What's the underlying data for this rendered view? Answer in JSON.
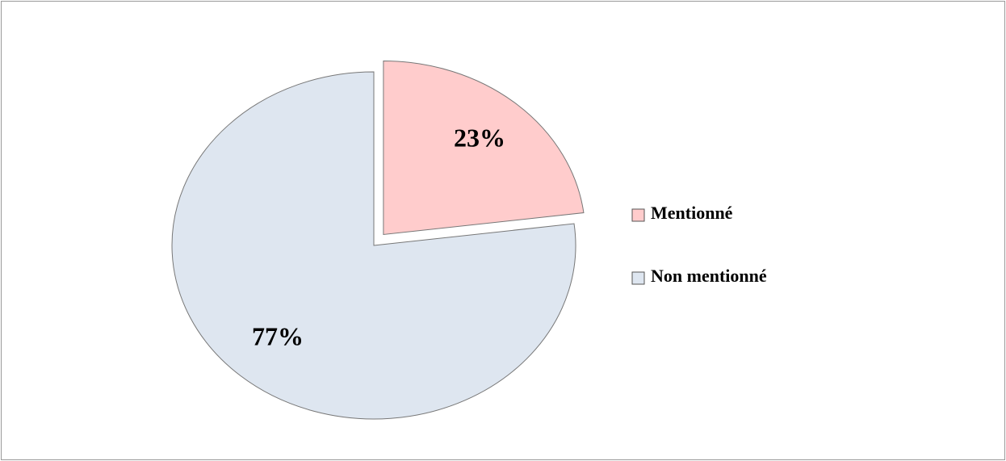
{
  "chart_data": {
    "type": "pie",
    "categories": [
      "Mentionné",
      "Non mentionné"
    ],
    "values": [
      23,
      77
    ],
    "value_labels": [
      "23%",
      "77%"
    ],
    "colors": [
      "#ffcccc",
      "#dee6f0"
    ],
    "legend": "right"
  }
}
